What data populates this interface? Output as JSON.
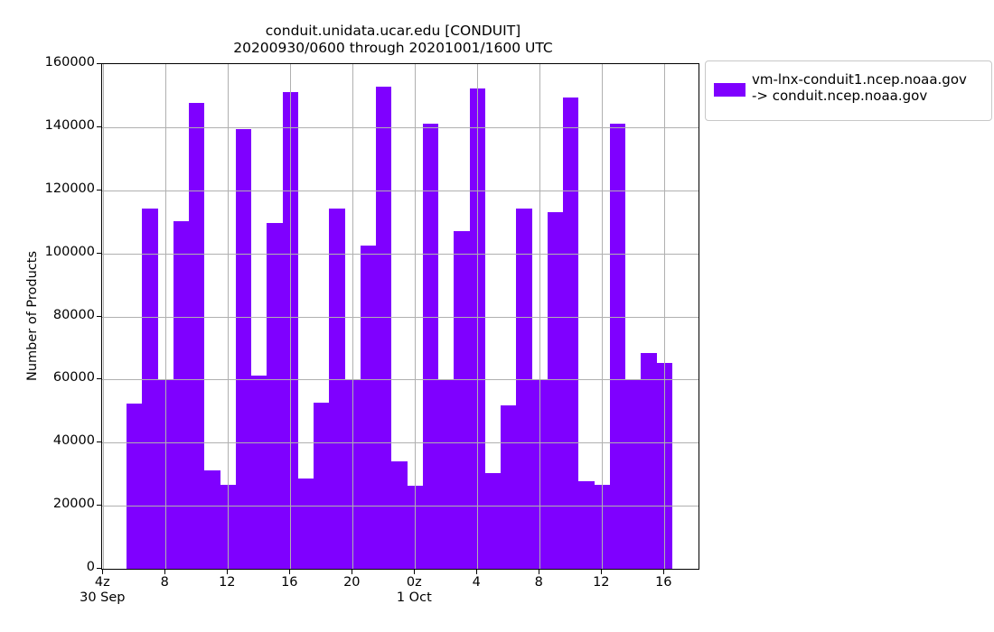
{
  "title": {
    "line1": "conduit.unidata.ucar.edu [CONDUIT]",
    "line2": "20200930/0600 through 20201001/1600 UTC"
  },
  "y_axis": {
    "label": "Number of Products"
  },
  "legend": {
    "line1": "vm-lnx-conduit1.ncep.noaa.gov",
    "line2": "-> conduit.ncep.noaa.gov",
    "swatch_color": "#7f00ff"
  },
  "colors": {
    "bar": "#7f00ff",
    "grid": "#b0b0b0",
    "axis": "#000000",
    "legend_border": "#c8c8c8",
    "background": "#ffffff"
  },
  "chart_data": {
    "type": "bar",
    "title": "conduit.unidata.ucar.edu [CONDUIT]",
    "subtitle": "20200930/0600 through 20201001/1600 UTC",
    "xlabel": "",
    "ylabel": "Number of Products",
    "ylim": [
      0,
      160000
    ],
    "grid": true,
    "legend_position": "outside upper right",
    "bin_width_hours": 1,
    "x_hours_utc": [
      6,
      7,
      8,
      9,
      10,
      11,
      12,
      13,
      14,
      15,
      16,
      17,
      18,
      19,
      20,
      21,
      22,
      23,
      24,
      25,
      26,
      27,
      28,
      29,
      30,
      31,
      32,
      33,
      34,
      35,
      36,
      37,
      38,
      39,
      40
    ],
    "series": [
      {
        "name": "vm-lnx-conduit1.ncep.noaa.gov -> conduit.ncep.noaa.gov",
        "color": "#7f00ff",
        "values": [
          52300,
          114300,
          60000,
          110200,
          147700,
          31100,
          26500,
          139500,
          61400,
          109600,
          151100,
          28700,
          52800,
          114300,
          60000,
          102600,
          152800,
          34200,
          26400,
          141100,
          60000,
          107000,
          152300,
          30300,
          51900,
          114100,
          60000,
          113000,
          149500,
          27700,
          26500,
          141100,
          60000,
          68400,
          65200
        ]
      }
    ],
    "y_ticks": [
      0,
      20000,
      40000,
      60000,
      80000,
      100000,
      120000,
      140000,
      160000
    ],
    "x_ticks": [
      {
        "h": 4,
        "label": "4z"
      },
      {
        "h": 8,
        "label": "8"
      },
      {
        "h": 12,
        "label": "12"
      },
      {
        "h": 16,
        "label": "16"
      },
      {
        "h": 20,
        "label": "20"
      },
      {
        "h": 24,
        "label": "0z"
      },
      {
        "h": 28,
        "label": "4"
      },
      {
        "h": 32,
        "label": "8"
      },
      {
        "h": 36,
        "label": "12"
      },
      {
        "h": 40,
        "label": "16"
      }
    ],
    "x_date_labels": [
      {
        "h": 4,
        "label": "30 Sep"
      },
      {
        "h": 24,
        "label": "1 Oct"
      }
    ]
  }
}
